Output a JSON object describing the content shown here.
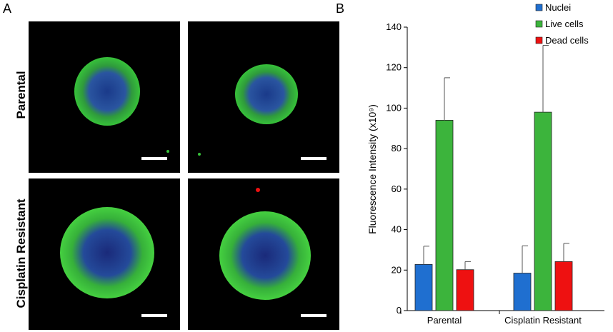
{
  "panels": {
    "a": "A",
    "b": "B"
  },
  "row_labels": [
    "Parental",
    "Cisplatin Resistant"
  ],
  "colors": {
    "nuclei": "#1f6fd0",
    "live": "#3cb43c",
    "dead": "#ee1111"
  },
  "chart_data": {
    "type": "bar",
    "categories": [
      "Parental",
      "Cisplatin Resistant"
    ],
    "series": [
      {
        "name": "Nuclei",
        "values": [
          22.8,
          18.5
        ],
        "errors": [
          9,
          13.5
        ],
        "color": "#1f6fd0"
      },
      {
        "name": "Live cells",
        "values": [
          94,
          98
        ],
        "errors": [
          21,
          33
        ],
        "color": "#3cb43c"
      },
      {
        "name": "Dead cells",
        "values": [
          20.2,
          24.2
        ],
        "errors": [
          4,
          9
        ],
        "color": "#ee1111"
      }
    ],
    "ylabel": "Fluorescence Intensity (x10⁹)",
    "ylim": [
      0,
      140
    ],
    "yticks": [
      "0",
      "20",
      "40",
      "60",
      "80",
      "100",
      "120",
      "140"
    ],
    "legend": "top-right",
    "grid": false
  }
}
